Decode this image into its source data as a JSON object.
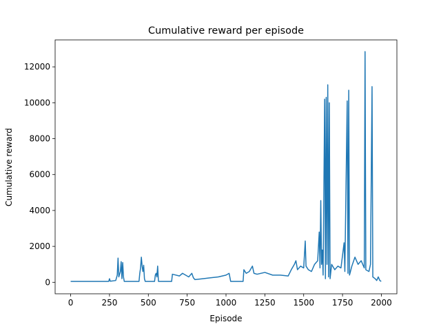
{
  "chart_data": {
    "type": "line",
    "title": "Cumulative reward per episode",
    "x_label": "Episode",
    "y_label": "Cumulative reward",
    "x": [
      0,
      245,
      250,
      255,
      290,
      300,
      305,
      310,
      320,
      325,
      330,
      335,
      340,
      345,
      440,
      445,
      450,
      455,
      460,
      465,
      470,
      475,
      480,
      540,
      545,
      550,
      555,
      560,
      565,
      650,
      655,
      700,
      720,
      740,
      760,
      780,
      790,
      800,
      850,
      900,
      950,
      1000,
      1020,
      1030,
      1110,
      1115,
      1130,
      1150,
      1170,
      1180,
      1200,
      1250,
      1300,
      1350,
      1400,
      1420,
      1440,
      1450,
      1460,
      1480,
      1500,
      1510,
      1515,
      1530,
      1550,
      1570,
      1590,
      1600,
      1605,
      1610,
      1615,
      1620,
      1625,
      1635,
      1640,
      1645,
      1650,
      1655,
      1660,
      1665,
      1670,
      1680,
      1700,
      1720,
      1740,
      1760,
      1765,
      1780,
      1785,
      1790,
      1795,
      1810,
      1830,
      1850,
      1870,
      1890,
      1895,
      1900,
      1920,
      1930,
      1940,
      1945,
      1960,
      1970,
      1980,
      1990,
      1999
    ],
    "series": [
      {
        "name": "reward",
        "color": "#1f77b4",
        "values": [
          50,
          50,
          200,
          60,
          100,
          400,
          1350,
          300,
          600,
          1150,
          200,
          1100,
          300,
          50,
          50,
          500,
          800,
          1400,
          900,
          600,
          950,
          200,
          50,
          50,
          400,
          500,
          300,
          900,
          50,
          50,
          450,
          350,
          500,
          400,
          300,
          500,
          250,
          150,
          200,
          250,
          300,
          400,
          500,
          50,
          50,
          700,
          500,
          600,
          900,
          500,
          450,
          550,
          400,
          400,
          350,
          700,
          1000,
          1200,
          700,
          900,
          800,
          2300,
          900,
          700,
          600,
          1000,
          1200,
          2800,
          800,
          4550,
          1000,
          1800,
          400,
          10200,
          200,
          10300,
          1000,
          11000,
          300,
          10000,
          200,
          1000,
          700,
          900,
          800,
          2200,
          600,
          10100,
          500,
          10700,
          400,
          900,
          1400,
          1000,
          1200,
          800,
          12850,
          700,
          600,
          1000,
          10900,
          300,
          200,
          100,
          300,
          100,
          50
        ]
      }
    ],
    "xlim": [
      -100,
      2100
    ],
    "ylim": [
      -640,
      13500
    ],
    "xticks": [
      0,
      250,
      500,
      750,
      1000,
      1250,
      1500,
      1750,
      2000
    ],
    "yticks": [
      0,
      2000,
      4000,
      6000,
      8000,
      10000,
      12000
    ]
  }
}
